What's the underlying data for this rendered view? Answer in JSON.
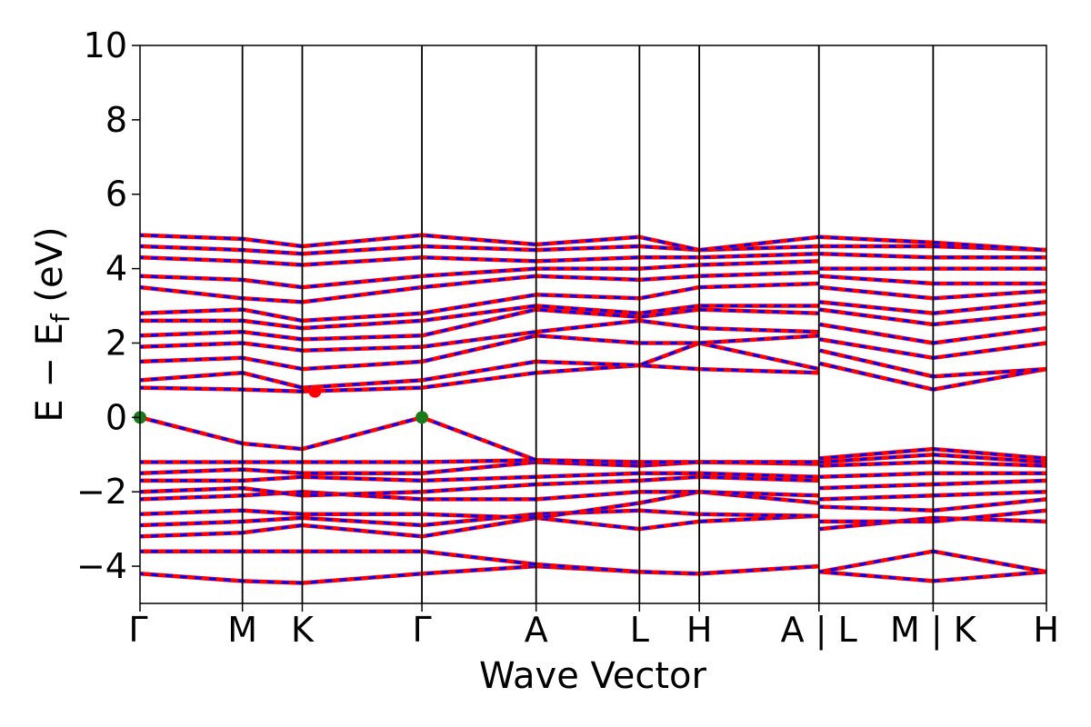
{
  "chart_data": {
    "type": "line",
    "title": "",
    "xlabel": "Wave Vector",
    "ylabel": "E − E",
    "ylabel_sub": "f",
    "ylabel_unit": " (eV)",
    "ylim": [
      -5,
      10
    ],
    "yticks": [
      -4,
      -2,
      0,
      2,
      4,
      6,
      8,
      10
    ],
    "ytick_labels": [
      "−4",
      "−2",
      "0",
      "2",
      "4",
      "6",
      "8",
      "10"
    ],
    "xlim": [
      0,
      1
    ],
    "kpoints": [
      {
        "label": "Γ",
        "x": 0.0
      },
      {
        "label": "M",
        "x": 0.113
      },
      {
        "label": "K",
        "x": 0.179
      },
      {
        "label": "Γ",
        "x": 0.311
      },
      {
        "label": "A",
        "x": 0.437
      },
      {
        "label": "L",
        "x": 0.551
      },
      {
        "label": "H",
        "x": 0.617
      },
      {
        "label": "A | L",
        "x": 0.749
      },
      {
        "label": "M | K",
        "x": 0.875
      },
      {
        "label": "H",
        "x": 1.0
      }
    ],
    "grid": false,
    "colors": {
      "spin_up": "#ff0000",
      "spin_down": "#0000ff",
      "vbm": "#1a7a1a",
      "cbm": "#ff0000"
    },
    "bands": [
      {
        "x": [
          0,
          0.113,
          0.179,
          0.311,
          0.437,
          0.551,
          0.617,
          0.749,
          0.75,
          0.875,
          1.0
        ],
        "y": [
          -4.2,
          -4.4,
          -4.45,
          -4.2,
          -4.0,
          -4.15,
          -4.2,
          -4.0,
          -4.15,
          -4.4,
          -4.15
        ]
      },
      {
        "x": [
          0,
          0.113,
          0.179,
          0.311,
          0.437,
          0.551,
          0.617,
          0.749,
          0.75,
          0.875,
          1.0
        ],
        "y": [
          -3.6,
          -3.6,
          -3.6,
          -3.6,
          -3.95,
          -4.15,
          -4.2,
          -4.0,
          -4.15,
          -3.6,
          -4.15
        ]
      },
      {
        "x": [
          0,
          0.113,
          0.179,
          0.311,
          0.437,
          0.551,
          0.617,
          0.749,
          0.75,
          0.875,
          1.0
        ],
        "y": [
          -3.2,
          -3.1,
          -2.9,
          -3.2,
          -2.7,
          -3.0,
          -2.8,
          -2.65,
          -3.0,
          -2.7,
          -2.8
        ]
      },
      {
        "x": [
          0,
          0.113,
          0.179,
          0.311,
          0.437,
          0.551,
          0.617,
          0.749,
          0.75,
          0.875,
          1.0
        ],
        "y": [
          -2.9,
          -2.8,
          -2.7,
          -2.9,
          -2.6,
          -2.5,
          -2.6,
          -2.65,
          -2.8,
          -2.8,
          -2.5
        ]
      },
      {
        "x": [
          0,
          0.113,
          0.179,
          0.311,
          0.437,
          0.551,
          0.617,
          0.749,
          0.75,
          0.875,
          1.0
        ],
        "y": [
          -2.6,
          -2.5,
          -2.6,
          -2.6,
          -2.7,
          -2.3,
          -2.0,
          -2.3,
          -2.4,
          -2.5,
          -2.2
        ]
      },
      {
        "x": [
          0,
          0.113,
          0.179,
          0.311,
          0.437,
          0.551,
          0.617,
          0.749,
          0.75,
          0.875,
          1.0
        ],
        "y": [
          -2.2,
          -2.1,
          -2.0,
          -2.2,
          -2.2,
          -2.0,
          -2.0,
          -2.1,
          -2.2,
          -2.1,
          -2.0
        ]
      },
      {
        "x": [
          0,
          0.113,
          0.179,
          0.311,
          0.437,
          0.551,
          0.617,
          0.749,
          0.75,
          0.875,
          1.0
        ],
        "y": [
          -2.0,
          -1.9,
          -2.1,
          -2.0,
          -1.8,
          -1.7,
          -1.6,
          -1.7,
          -1.9,
          -1.8,
          -1.7
        ]
      },
      {
        "x": [
          0,
          0.113,
          0.179,
          0.311,
          0.437,
          0.551,
          0.617,
          0.749,
          0.75,
          0.875,
          1.0
        ],
        "y": [
          -1.7,
          -1.7,
          -1.6,
          -1.7,
          -1.6,
          -1.5,
          -1.5,
          -1.6,
          -1.6,
          -1.5,
          -1.5
        ]
      },
      {
        "x": [
          0,
          0.113,
          0.179,
          0.311,
          0.437,
          0.551,
          0.617,
          0.749,
          0.75,
          0.875,
          1.0
        ],
        "y": [
          -1.5,
          -1.4,
          -1.5,
          -1.5,
          -1.2,
          -1.3,
          -1.2,
          -1.25,
          -1.3,
          -1.2,
          -1.3
        ]
      },
      {
        "x": [
          0,
          0.113,
          0.179,
          0.311,
          0.437,
          0.551,
          0.617,
          0.749,
          0.75,
          0.875,
          1.0
        ],
        "y": [
          -1.2,
          -1.2,
          -1.2,
          -1.2,
          -1.15,
          -1.2,
          -1.2,
          -1.2,
          -1.2,
          -1.0,
          -1.2
        ]
      },
      {
        "x": [
          0,
          0.113,
          0.179,
          0.311,
          0.437,
          0.551,
          0.617,
          0.749,
          0.75,
          0.875,
          1.0
        ],
        "y": [
          0.0,
          -0.7,
          -0.85,
          0.0,
          -1.15,
          -1.2,
          -1.2,
          -1.2,
          -1.1,
          -0.85,
          -1.1
        ]
      },
      {
        "x": [
          0,
          0.113,
          0.179,
          0.311,
          0.437,
          0.551,
          0.617,
          0.749,
          0.75,
          0.875,
          1.0
        ],
        "y": [
          0.8,
          0.75,
          0.7,
          0.8,
          1.2,
          1.4,
          1.3,
          1.2,
          1.45,
          0.75,
          1.3
        ]
      },
      {
        "x": [
          0,
          0.113,
          0.179,
          0.311,
          0.437,
          0.551,
          0.617,
          0.749,
          0.75,
          0.875,
          1.0
        ],
        "y": [
          1.0,
          1.2,
          0.8,
          1.0,
          1.5,
          1.4,
          2.0,
          1.3,
          1.8,
          1.1,
          1.3
        ]
      },
      {
        "x": [
          0,
          0.113,
          0.179,
          0.311,
          0.437,
          0.551,
          0.617,
          0.749,
          0.75,
          0.875,
          1.0
        ],
        "y": [
          1.5,
          1.6,
          1.3,
          1.5,
          2.2,
          2.0,
          2.0,
          2.2,
          2.1,
          1.6,
          2.0
        ]
      },
      {
        "x": [
          0,
          0.113,
          0.179,
          0.311,
          0.437,
          0.551,
          0.617,
          0.749,
          0.75,
          0.875,
          1.0
        ],
        "y": [
          1.9,
          2.0,
          1.8,
          1.9,
          2.3,
          2.6,
          2.4,
          2.3,
          2.5,
          2.0,
          2.4
        ]
      },
      {
        "x": [
          0,
          0.113,
          0.179,
          0.311,
          0.437,
          0.551,
          0.617,
          0.749,
          0.75,
          0.875,
          1.0
        ],
        "y": [
          2.2,
          2.3,
          2.1,
          2.2,
          2.9,
          2.7,
          2.9,
          2.8,
          2.9,
          2.5,
          2.8
        ]
      },
      {
        "x": [
          0,
          0.113,
          0.179,
          0.311,
          0.437,
          0.551,
          0.617,
          0.749,
          0.75,
          0.875,
          1.0
        ],
        "y": [
          2.6,
          2.6,
          2.4,
          2.6,
          3.0,
          2.8,
          3.0,
          3.0,
          3.1,
          2.8,
          3.1
        ]
      },
      {
        "x": [
          0,
          0.113,
          0.179,
          0.311,
          0.437,
          0.551,
          0.617,
          0.749,
          0.75,
          0.875,
          1.0
        ],
        "y": [
          2.8,
          2.9,
          2.6,
          2.8,
          3.3,
          3.2,
          3.5,
          3.6,
          3.5,
          3.2,
          3.4
        ]
      },
      {
        "x": [
          0,
          0.113,
          0.179,
          0.311,
          0.437,
          0.551,
          0.617,
          0.749,
          0.75,
          0.875,
          1.0
        ],
        "y": [
          3.5,
          3.2,
          3.1,
          3.5,
          3.8,
          3.7,
          3.8,
          3.9,
          3.8,
          3.6,
          3.6
        ]
      },
      {
        "x": [
          0,
          0.113,
          0.179,
          0.311,
          0.437,
          0.551,
          0.617,
          0.749,
          0.75,
          0.875,
          1.0
        ],
        "y": [
          3.8,
          3.7,
          3.5,
          3.8,
          4.0,
          4.0,
          4.1,
          4.2,
          4.0,
          4.0,
          4.0
        ]
      },
      {
        "x": [
          0,
          0.113,
          0.179,
          0.311,
          0.437,
          0.551,
          0.617,
          0.749,
          0.75,
          0.875,
          1.0
        ],
        "y": [
          4.3,
          4.2,
          4.1,
          4.3,
          4.2,
          4.3,
          4.3,
          4.4,
          4.4,
          4.3,
          4.3
        ]
      },
      {
        "x": [
          0,
          0.113,
          0.179,
          0.311,
          0.437,
          0.551,
          0.617,
          0.749,
          0.75,
          0.875,
          1.0
        ],
        "y": [
          4.6,
          4.5,
          4.4,
          4.6,
          4.5,
          4.6,
          4.5,
          4.6,
          4.6,
          4.6,
          4.5
        ]
      },
      {
        "x": [
          0,
          0.113,
          0.179,
          0.311,
          0.437,
          0.551,
          0.617,
          0.749,
          0.75,
          0.875,
          1.0
        ],
        "y": [
          4.9,
          4.8,
          4.6,
          4.9,
          4.65,
          4.85,
          4.5,
          4.85,
          4.85,
          4.7,
          4.5
        ]
      }
    ],
    "markers": [
      {
        "kind": "vbm",
        "x": 0.0,
        "y": 0.0
      },
      {
        "kind": "vbm",
        "x": 0.311,
        "y": 0.0
      },
      {
        "kind": "cbm",
        "x": 0.193,
        "y": 0.7
      }
    ]
  }
}
